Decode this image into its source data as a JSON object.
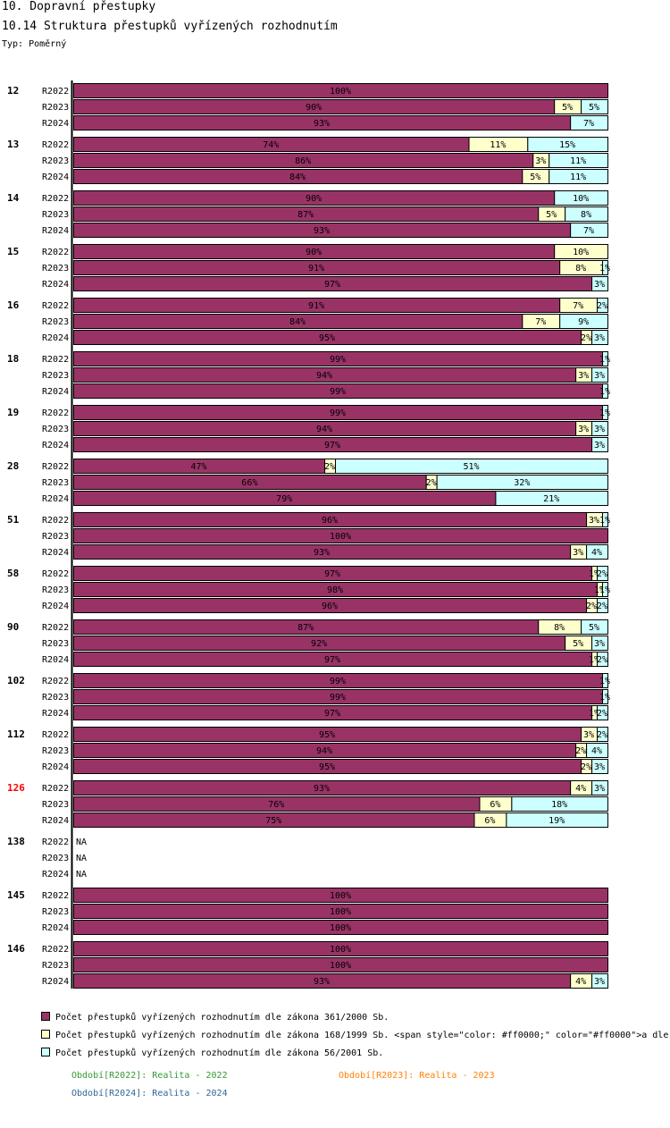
{
  "header": {
    "title": "10. Dopravní přestupky",
    "subtitle": "10.14 Struktura přestupků vyřízených rozhodnutím",
    "type_label": "Typ: Poměrný"
  },
  "colors": {
    "s1": "#993366",
    "s2": "#ffffcc",
    "s3": "#ccffff",
    "border": "#000000",
    "highlight_group": "#ff0000",
    "p2022": "#339933",
    "p2023": "#ff8000",
    "p2024": "#336699"
  },
  "chart_data": {
    "type": "bar",
    "orientation": "horizontal",
    "stacked": true,
    "unit": "%",
    "xlim": [
      0,
      100
    ],
    "series": [
      {
        "name": "Počet přestupků vyřízených rozhodnutím dle zákona 361/2000 Sb."
      },
      {
        "name": "Počet přestupků vyřízených rozhodnutím dle zákona 168/1999 Sb. <span style=\"color: #ff0000;\" color=\"#ff0000\">a dle"
      },
      {
        "name": "Počet přestupků vyřízených rozhodnutím dle zákona 56/2001 Sb."
      }
    ],
    "groups": [
      {
        "label": "12",
        "highlight": false,
        "rows": [
          {
            "period": "R2022",
            "values": [
              100,
              0,
              0
            ],
            "labels": [
              "100%",
              "",
              ""
            ]
          },
          {
            "period": "R2023",
            "values": [
              90,
              5,
              5
            ],
            "labels": [
              "90%",
              "5%",
              "5%"
            ]
          },
          {
            "period": "R2024",
            "values": [
              93,
              0,
              7
            ],
            "labels": [
              "93%",
              "",
              "7%"
            ]
          }
        ]
      },
      {
        "label": "13",
        "highlight": false,
        "rows": [
          {
            "period": "R2022",
            "values": [
              74,
              11,
              15
            ],
            "labels": [
              "74%",
              "11%",
              "15%"
            ]
          },
          {
            "period": "R2023",
            "values": [
              86,
              3,
              11
            ],
            "labels": [
              "86%",
              "3%",
              "11%"
            ]
          },
          {
            "period": "R2024",
            "values": [
              84,
              5,
              11
            ],
            "labels": [
              "84%",
              "5%",
              "11%"
            ]
          }
        ]
      },
      {
        "label": "14",
        "highlight": false,
        "rows": [
          {
            "period": "R2022",
            "values": [
              90,
              0,
              10
            ],
            "labels": [
              "90%",
              "",
              "10%"
            ]
          },
          {
            "period": "R2023",
            "values": [
              87,
              5,
              8
            ],
            "labels": [
              "87%",
              "5%",
              "8%"
            ]
          },
          {
            "period": "R2024",
            "values": [
              93,
              0,
              7
            ],
            "labels": [
              "93%",
              "",
              "7%"
            ]
          }
        ]
      },
      {
        "label": "15",
        "highlight": false,
        "rows": [
          {
            "period": "R2022",
            "values": [
              90,
              10,
              0
            ],
            "labels": [
              "90%",
              "10%",
              ""
            ]
          },
          {
            "period": "R2023",
            "values": [
              91,
              8,
              1
            ],
            "labels": [
              "91%",
              "8%",
              "1%"
            ]
          },
          {
            "period": "R2024",
            "values": [
              97,
              0,
              3
            ],
            "labels": [
              "97%",
              "",
              "3%"
            ]
          }
        ]
      },
      {
        "label": "16",
        "highlight": false,
        "rows": [
          {
            "period": "R2022",
            "values": [
              91,
              7,
              2
            ],
            "labels": [
              "91%",
              "7%",
              "2%"
            ]
          },
          {
            "period": "R2023",
            "values": [
              84,
              7,
              9
            ],
            "labels": [
              "84%",
              "7%",
              "9%"
            ]
          },
          {
            "period": "R2024",
            "values": [
              95,
              2,
              3
            ],
            "labels": [
              "95%",
              "2%",
              "3%"
            ]
          }
        ]
      },
      {
        "label": "18",
        "highlight": false,
        "rows": [
          {
            "period": "R2022",
            "values": [
              99,
              0,
              1
            ],
            "labels": [
              "99%",
              "",
              "1%"
            ]
          },
          {
            "period": "R2023",
            "values": [
              94,
              3,
              3
            ],
            "labels": [
              "94%",
              "3%",
              "3%"
            ]
          },
          {
            "period": "R2024",
            "values": [
              99,
              0,
              1
            ],
            "labels": [
              "99%",
              "",
              "1%"
            ]
          }
        ]
      },
      {
        "label": "19",
        "highlight": false,
        "rows": [
          {
            "period": "R2022",
            "values": [
              99,
              0,
              1
            ],
            "labels": [
              "99%",
              "",
              "1%"
            ]
          },
          {
            "period": "R2023",
            "values": [
              94,
              3,
              3
            ],
            "labels": [
              "94%",
              "3%",
              "3%"
            ]
          },
          {
            "period": "R2024",
            "values": [
              97,
              0,
              3
            ],
            "labels": [
              "97%",
              "",
              "3%"
            ]
          }
        ]
      },
      {
        "label": "28",
        "highlight": false,
        "rows": [
          {
            "period": "R2022",
            "values": [
              47,
              2,
              51
            ],
            "labels": [
              "47%",
              "2%",
              "51%"
            ]
          },
          {
            "period": "R2023",
            "values": [
              66,
              2,
              32
            ],
            "labels": [
              "66%",
              "2%",
              "32%"
            ]
          },
          {
            "period": "R2024",
            "values": [
              79,
              0,
              21
            ],
            "labels": [
              "79%",
              "",
              "21%"
            ]
          }
        ]
      },
      {
        "label": "51",
        "highlight": false,
        "rows": [
          {
            "period": "R2022",
            "values": [
              96,
              3,
              1
            ],
            "labels": [
              "96%",
              "3%",
              "1%"
            ]
          },
          {
            "period": "R2023",
            "values": [
              100,
              0,
              0
            ],
            "labels": [
              "100%",
              "",
              ""
            ]
          },
          {
            "period": "R2024",
            "values": [
              93,
              3,
              4
            ],
            "labels": [
              "93%",
              "3%",
              "4%"
            ]
          }
        ]
      },
      {
        "label": "58",
        "highlight": false,
        "rows": [
          {
            "period": "R2022",
            "values": [
              97,
              1,
              2
            ],
            "labels": [
              "97%",
              "1%",
              "2%"
            ]
          },
          {
            "period": "R2023",
            "values": [
              98,
              1,
              1
            ],
            "labels": [
              "98%",
              "1%",
              "1%"
            ]
          },
          {
            "period": "R2024",
            "values": [
              96,
              2,
              2
            ],
            "labels": [
              "96%",
              "2%",
              "2%"
            ]
          }
        ]
      },
      {
        "label": "90",
        "highlight": false,
        "rows": [
          {
            "period": "R2022",
            "values": [
              87,
              8,
              5
            ],
            "labels": [
              "87%",
              "8%",
              "5%"
            ]
          },
          {
            "period": "R2023",
            "values": [
              92,
              5,
              3
            ],
            "labels": [
              "92%",
              "5%",
              "3%"
            ]
          },
          {
            "period": "R2024",
            "values": [
              97,
              1,
              2
            ],
            "labels": [
              "97%",
              "1%",
              "2%"
            ]
          }
        ]
      },
      {
        "label": "102",
        "highlight": false,
        "rows": [
          {
            "period": "R2022",
            "values": [
              99,
              0,
              1
            ],
            "labels": [
              "99%",
              "",
              "1%"
            ]
          },
          {
            "period": "R2023",
            "values": [
              99,
              0,
              1
            ],
            "labels": [
              "99%",
              "",
              "1%"
            ]
          },
          {
            "period": "R2024",
            "values": [
              97,
              1,
              2
            ],
            "labels": [
              "97%",
              "1%",
              "2%"
            ]
          }
        ]
      },
      {
        "label": "112",
        "highlight": false,
        "rows": [
          {
            "period": "R2022",
            "values": [
              95,
              3,
              2
            ],
            "labels": [
              "95%",
              "3%",
              "2%"
            ]
          },
          {
            "period": "R2023",
            "values": [
              94,
              2,
              4
            ],
            "labels": [
              "94%",
              "2%",
              "4%"
            ]
          },
          {
            "period": "R2024",
            "values": [
              95,
              2,
              3
            ],
            "labels": [
              "95%",
              "2%",
              "3%"
            ]
          }
        ]
      },
      {
        "label": "126",
        "highlight": true,
        "rows": [
          {
            "period": "R2022",
            "values": [
              93,
              4,
              3
            ],
            "labels": [
              "93%",
              "4%",
              "3%"
            ]
          },
          {
            "period": "R2023",
            "values": [
              76,
              6,
              18
            ],
            "labels": [
              "76%",
              "6%",
              "18%"
            ]
          },
          {
            "period": "R2024",
            "values": [
              75,
              6,
              19
            ],
            "labels": [
              "75%",
              "6%",
              "19%"
            ]
          }
        ]
      },
      {
        "label": "138",
        "highlight": false,
        "rows": [
          {
            "period": "R2022",
            "values": null,
            "na": "NA"
          },
          {
            "period": "R2023",
            "values": null,
            "na": "NA"
          },
          {
            "period": "R2024",
            "values": null,
            "na": "NA"
          }
        ]
      },
      {
        "label": "145",
        "highlight": false,
        "rows": [
          {
            "period": "R2022",
            "values": [
              100,
              0,
              0
            ],
            "labels": [
              "100%",
              "",
              ""
            ]
          },
          {
            "period": "R2023",
            "values": [
              100,
              0,
              0
            ],
            "labels": [
              "100%",
              "",
              ""
            ]
          },
          {
            "period": "R2024",
            "values": [
              100,
              0,
              0
            ],
            "labels": [
              "100%",
              "",
              ""
            ]
          }
        ]
      },
      {
        "label": "146",
        "highlight": false,
        "rows": [
          {
            "period": "R2022",
            "values": [
              100,
              0,
              0
            ],
            "labels": [
              "100%",
              "",
              ""
            ]
          },
          {
            "period": "R2023",
            "values": [
              100,
              0,
              0
            ],
            "labels": [
              "100%",
              "",
              ""
            ]
          },
          {
            "period": "R2024",
            "values": [
              93,
              4,
              3
            ],
            "labels": [
              "93%",
              "4%",
              "3%"
            ]
          }
        ]
      }
    ]
  },
  "legend": {
    "items": [
      "Počet přestupků vyřízených rozhodnutím dle zákona 361/2000 Sb.",
      "Počet přestupků vyřízených rozhodnutím dle zákona 168/1999 Sb. <span style=\"color: #ff0000;\" color=\"#ff0000\">a dle",
      "Počet přestupků vyřízených rozhodnutím dle zákona 56/2001 Sb."
    ],
    "periods": {
      "p2022": "Období[R2022]: Realita - 2022",
      "p2023": "Období[R2023]: Realita - 2023",
      "p2024": "Období[R2024]: Realita - 2024"
    }
  }
}
